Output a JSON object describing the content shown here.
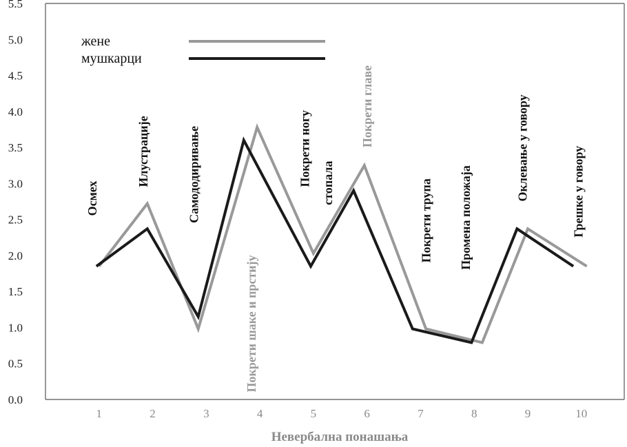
{
  "chart_data": {
    "type": "line",
    "title": "",
    "xlabel": "Невербална  понашања",
    "ylabel": "",
    "xlim": [
      0,
      10.8
    ],
    "ylim": [
      0,
      5.5
    ],
    "x_ticks": [
      "1",
      "2",
      "3",
      "4",
      "5",
      "6",
      "7",
      "8",
      "9",
      "10"
    ],
    "y_ticks": [
      "0.0",
      "0.5",
      "1.0",
      "1.5",
      "2.0",
      "2.5",
      "3.0",
      "3.5",
      "4.0",
      "4.5",
      "5.0",
      "5.5"
    ],
    "legend": {
      "placement": "top-left"
    },
    "series": [
      {
        "name": "жене",
        "color": "#999999",
        "x": [
          1,
          1.9,
          2.85,
          3.95,
          5.0,
          5.95,
          7.1,
          8.15,
          9.0,
          10.1
        ],
        "y": [
          1.85,
          2.72,
          0.98,
          3.78,
          2.03,
          3.25,
          0.98,
          0.79,
          2.37,
          1.85
        ]
      },
      {
        "name": "мушкарци",
        "color": "#1a1a1a",
        "x": [
          0.95,
          1.9,
          2.85,
          3.7,
          4.95,
          5.75,
          6.85,
          7.95,
          8.8,
          9.85
        ],
        "y": [
          1.85,
          2.37,
          1.15,
          3.6,
          1.85,
          2.9,
          0.98,
          0.79,
          2.37,
          1.85
        ]
      }
    ],
    "annotations": [
      {
        "text": "Осмех",
        "x": 0.95,
        "y": 2.55,
        "color": "#111111"
      },
      {
        "text": "Илустрације",
        "x": 1.9,
        "y": 2.95,
        "color": "#111111"
      },
      {
        "text": "Самододиривање",
        "x": 2.85,
        "y": 2.45,
        "color": "#111111"
      },
      {
        "text": "Покрети шаке и прстију",
        "x": 3.92,
        "y": 0.1,
        "color": "#999999"
      },
      {
        "text": "Покрети ногу",
        "x": 4.92,
        "y": 2.95,
        "color": "#111111"
      },
      {
        "text": "стопала",
        "x": 5.35,
        "y": 2.7,
        "color": "#111111"
      },
      {
        "text": "Покрети главе",
        "x": 6.08,
        "y": 3.5,
        "color": "#999999"
      },
      {
        "text": "Покрети трупа",
        "x": 7.18,
        "y": 1.9,
        "color": "#111111"
      },
      {
        "text": "Промена положаја",
        "x": 7.92,
        "y": 1.8,
        "color": "#111111"
      },
      {
        "text": "Оклевање у говору",
        "x": 8.98,
        "y": 2.75,
        "color": "#111111"
      },
      {
        "text": "Грешке у говору",
        "x": 10.02,
        "y": 2.25,
        "color": "#111111"
      }
    ]
  }
}
